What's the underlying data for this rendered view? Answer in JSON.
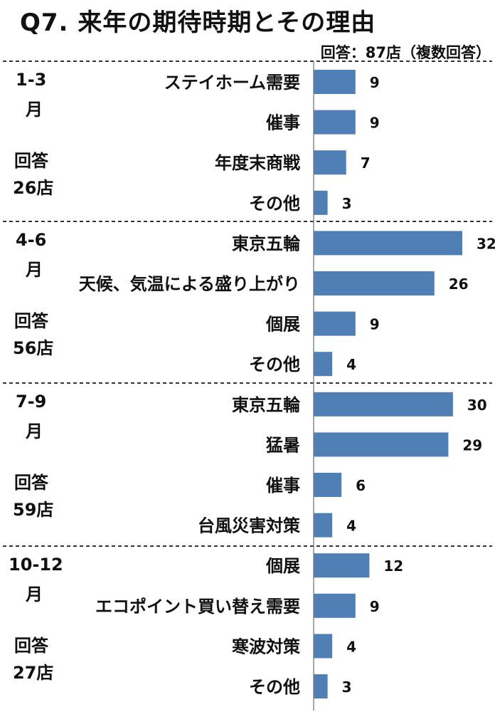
{
  "title": "Q7. 来年の期待時期とその理由",
  "respondents_note": "回答：87店（複数回答）",
  "colors": {
    "bar": "#4f7fb5",
    "divider": "#333333"
  },
  "chart_data": {
    "type": "bar",
    "orientation": "horizontal",
    "title": "Q7. 来年の期待時期とその理由",
    "groups": [
      {
        "period": "1-3",
        "period_unit": "月",
        "count_label": "回答",
        "count": "26店",
        "categories": [
          "ステイホーム需要",
          "催事",
          "年度末商戦",
          "その他"
        ],
        "values": [
          9,
          9,
          7,
          3
        ]
      },
      {
        "period": "4-6",
        "period_unit": "月",
        "count_label": "回答",
        "count": "56店",
        "categories": [
          "東京五輪",
          "天候、気温による盛り上がり",
          "個展",
          "その他"
        ],
        "values": [
          32,
          26,
          9,
          4
        ]
      },
      {
        "period": "7-9",
        "period_unit": "月",
        "count_label": "回答",
        "count": "59店",
        "categories": [
          "東京五輪",
          "猛暑",
          "催事",
          "台風災害対策"
        ],
        "values": [
          30,
          29,
          6,
          4
        ]
      },
      {
        "period": "10-12",
        "period_unit": "月",
        "count_label": "回答",
        "count": "27店",
        "categories": [
          "個展",
          "エコポイント買い替え需要",
          "寒波対策",
          "その他"
        ],
        "values": [
          12,
          9,
          4,
          3
        ]
      }
    ]
  }
}
